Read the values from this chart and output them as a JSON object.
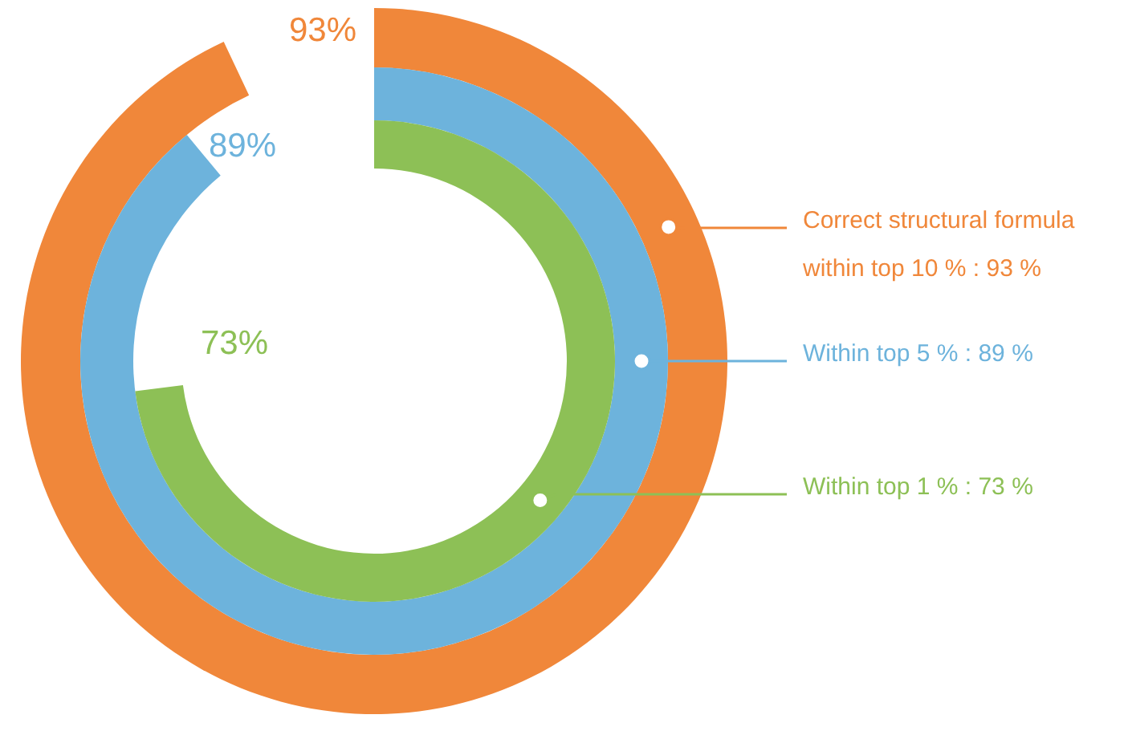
{
  "chart_data": {
    "type": "other",
    "categories": [
      null,
      null,
      null
    ],
    "values": [
      93,
      89,
      73
    ],
    "value_labels": [
      "93%",
      "89%",
      "73%"
    ],
    "colors": [
      "#f0873a",
      "#6db3dc",
      "#8dc056"
    ],
    "annotations": [
      "Correct structural formula within top 10 % : 93 %",
      "Within top 5 % : 89 %",
      "Within top 1 % : 73 %"
    ]
  }
}
